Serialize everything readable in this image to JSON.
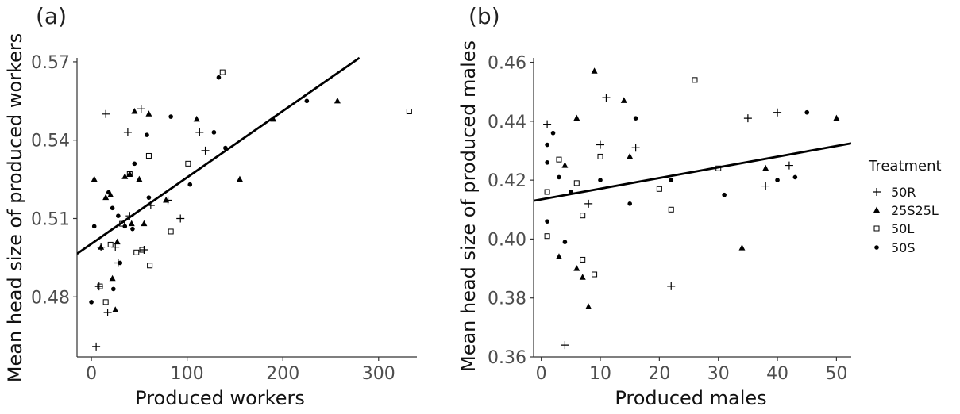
{
  "chart_data": [
    {
      "type": "scatter",
      "panel_label": "(a)",
      "xlabel": "Produced workers",
      "ylabel": "Mean head size of produced workers",
      "xlim": [
        -15,
        340
      ],
      "ylim": [
        0.457,
        0.5715
      ],
      "x_ticks": [
        0,
        100,
        200,
        300
      ],
      "y_ticks": [
        0.48,
        0.51,
        0.54,
        0.57
      ],
      "grid": false,
      "fit_line": {
        "x": [
          -15,
          280
        ],
        "y": [
          0.4965,
          0.5715
        ]
      },
      "series": [
        {
          "name": "50R",
          "points": [
            [
              5,
              0.461
            ],
            [
              8,
              0.484
            ],
            [
              10,
              0.499
            ],
            [
              15,
              0.55
            ],
            [
              17,
              0.474
            ],
            [
              25,
              0.499
            ],
            [
              28,
              0.493
            ],
            [
              38,
              0.543
            ],
            [
              40,
              0.511
            ],
            [
              52,
              0.552
            ],
            [
              55,
              0.498
            ],
            [
              62,
              0.515
            ],
            [
              80,
              0.517
            ],
            [
              93,
              0.51
            ],
            [
              113,
              0.543
            ],
            [
              119,
              0.536
            ]
          ]
        },
        {
          "name": "25S25L",
          "points": [
            [
              3,
              0.525
            ],
            [
              10,
              0.499
            ],
            [
              15,
              0.518
            ],
            [
              20,
              0.519
            ],
            [
              22,
              0.487
            ],
            [
              25,
              0.475
            ],
            [
              27,
              0.501
            ],
            [
              35,
              0.526
            ],
            [
              40,
              0.527
            ],
            [
              42,
              0.508
            ],
            [
              45,
              0.551
            ],
            [
              50,
              0.525
            ],
            [
              55,
              0.508
            ],
            [
              60,
              0.55
            ],
            [
              78,
              0.517
            ],
            [
              110,
              0.548
            ],
            [
              155,
              0.525
            ],
            [
              190,
              0.548
            ],
            [
              257,
              0.555
            ]
          ]
        },
        {
          "name": "50L",
          "points": [
            [
              9,
              0.484
            ],
            [
              15,
              0.478
            ],
            [
              20,
              0.5
            ],
            [
              32,
              0.508
            ],
            [
              40,
              0.527
            ],
            [
              47,
              0.497
            ],
            [
              53,
              0.498
            ],
            [
              60,
              0.534
            ],
            [
              61,
              0.492
            ],
            [
              83,
              0.505
            ],
            [
              101,
              0.531
            ],
            [
              137,
              0.566
            ],
            [
              332,
              0.551
            ]
          ]
        },
        {
          "name": "50S",
          "points": [
            [
              0,
              0.478
            ],
            [
              3,
              0.507
            ],
            [
              18,
              0.52
            ],
            [
              22,
              0.514
            ],
            [
              23,
              0.483
            ],
            [
              28,
              0.511
            ],
            [
              30,
              0.493
            ],
            [
              35,
              0.507
            ],
            [
              43,
              0.506
            ],
            [
              45,
              0.531
            ],
            [
              58,
              0.542
            ],
            [
              60,
              0.518
            ],
            [
              83,
              0.549
            ],
            [
              103,
              0.523
            ],
            [
              128,
              0.543
            ],
            [
              133,
              0.564
            ],
            [
              140,
              0.537
            ],
            [
              225,
              0.555
            ]
          ]
        }
      ]
    },
    {
      "type": "scatter",
      "panel_label": "(b)",
      "xlabel": "Produced males",
      "ylabel": "Mean head size of produced males",
      "xlim": [
        -1.3,
        52.5
      ],
      "ylim": [
        0.36,
        0.4615
      ],
      "x_ticks": [
        0,
        10,
        20,
        30,
        40,
        50
      ],
      "y_ticks": [
        0.36,
        0.38,
        0.4,
        0.42,
        0.44,
        0.46
      ],
      "grid": false,
      "fit_line": {
        "x": [
          -1.3,
          52.5
        ],
        "y": [
          0.413,
          0.4325
        ]
      },
      "series": [
        {
          "name": "50R",
          "points": [
            [
              1,
              0.439
            ],
            [
              4,
              0.364
            ],
            [
              8,
              0.412
            ],
            [
              10,
              0.432
            ],
            [
              11,
              0.448
            ],
            [
              16,
              0.431
            ],
            [
              22,
              0.384
            ],
            [
              35,
              0.441
            ],
            [
              38,
              0.418
            ],
            [
              40,
              0.443
            ],
            [
              42,
              0.425
            ]
          ]
        },
        {
          "name": "25S25L",
          "points": [
            [
              3,
              0.394
            ],
            [
              4,
              0.425
            ],
            [
              6,
              0.39
            ],
            [
              6,
              0.441
            ],
            [
              7,
              0.387
            ],
            [
              8,
              0.377
            ],
            [
              9,
              0.457
            ],
            [
              14,
              0.447
            ],
            [
              15,
              0.428
            ],
            [
              34,
              0.397
            ],
            [
              38,
              0.424
            ],
            [
              50,
              0.441
            ]
          ]
        },
        {
          "name": "50L",
          "points": [
            [
              1,
              0.401
            ],
            [
              1,
              0.416
            ],
            [
              3,
              0.427
            ],
            [
              6,
              0.419
            ],
            [
              7,
              0.408
            ],
            [
              7,
              0.393
            ],
            [
              9,
              0.388
            ],
            [
              10,
              0.428
            ],
            [
              20,
              0.417
            ],
            [
              22,
              0.41
            ],
            [
              26,
              0.454
            ],
            [
              30,
              0.424
            ]
          ]
        },
        {
          "name": "50S",
          "points": [
            [
              1,
              0.406
            ],
            [
              1,
              0.432
            ],
            [
              1,
              0.426
            ],
            [
              2,
              0.436
            ],
            [
              3,
              0.421
            ],
            [
              4,
              0.399
            ],
            [
              5,
              0.416
            ],
            [
              10,
              0.42
            ],
            [
              15,
              0.412
            ],
            [
              16,
              0.441
            ],
            [
              22,
              0.42
            ],
            [
              31,
              0.415
            ],
            [
              40,
              0.42
            ],
            [
              43,
              0.421
            ],
            [
              45,
              0.443
            ]
          ]
        }
      ]
    }
  ],
  "legend": {
    "title": "Treatment",
    "position": "right",
    "items": [
      {
        "label": "50R",
        "shape": "plus"
      },
      {
        "label": "25S25L",
        "shape": "triangle"
      },
      {
        "label": "50L",
        "shape": "square"
      },
      {
        "label": "50S",
        "shape": "circle"
      }
    ]
  },
  "colors": {
    "points": "#000000",
    "axis": "#333333",
    "text": "#4d4d4d"
  }
}
